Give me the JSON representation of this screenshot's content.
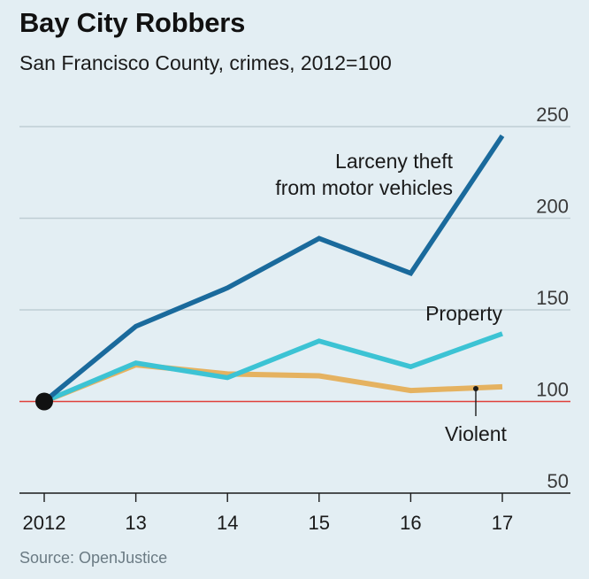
{
  "title": "Bay City Robbers",
  "subtitle": "San Francisco County, crimes, 2012=100",
  "source": "Source: OpenJustice",
  "chart_data": {
    "type": "line",
    "title": "Bay City Robbers",
    "subtitle": "San Francisco County, crimes, 2012=100",
    "x": [
      2012,
      2013,
      2014,
      2015,
      2016,
      2017
    ],
    "x_tick_labels": [
      "2012",
      "13",
      "14",
      "15",
      "16",
      "17"
    ],
    "ylim": [
      50,
      250
    ],
    "y_ticks": [
      50,
      100,
      150,
      200,
      250
    ],
    "y_tick_labels": [
      "50",
      "100",
      "150",
      "200",
      "250"
    ],
    "y_axis_side": "right",
    "baseline": 100,
    "grid": true,
    "series": [
      {
        "name": "Larceny theft from motor vehicles",
        "label_lines": [
          "Larceny theft",
          "from motor vehicles"
        ],
        "color": "#1a6a9c",
        "values": [
          100,
          141,
          162,
          189,
          170,
          245
        ]
      },
      {
        "name": "Property",
        "label_lines": [
          "Property"
        ],
        "color": "#3cc3d4",
        "values": [
          100,
          121,
          113,
          133,
          119,
          137
        ]
      },
      {
        "name": "Violent",
        "label_lines": [
          "Violent"
        ],
        "color": "#e5b260",
        "values": [
          100,
          120,
          115,
          114,
          106,
          108
        ]
      }
    ],
    "colors": {
      "background": "#e3eef3",
      "grid": "#bfcdd4",
      "baseline": "#e0413b",
      "axis": "#1a1a1a",
      "start_marker": "#111111",
      "source_text": "#6b7b84"
    }
  }
}
